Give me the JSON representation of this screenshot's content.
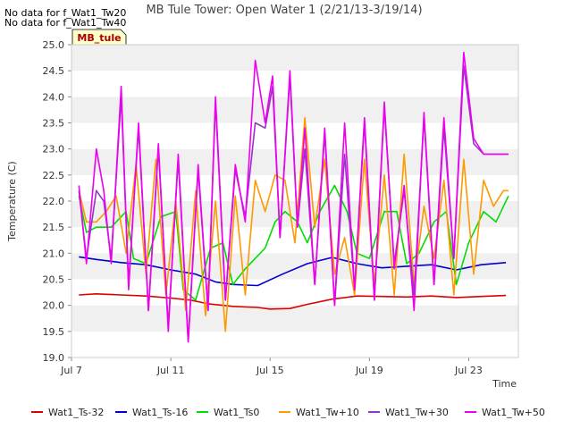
{
  "header": {
    "nodata_lines": [
      "No data for f_Wat1_Tw20",
      "No data for f_Wat1_Tw40"
    ],
    "site_badge": "MB_tule"
  },
  "chart_data": {
    "type": "line",
    "title": "MB Tule Tower: Open Water 1 (2/21/13-3/19/14)",
    "xlabel": "Time",
    "ylabel": "Temperature (C)",
    "ylim": [
      19.0,
      25.0
    ],
    "yticks": [
      "19.0",
      "19.5",
      "20.0",
      "20.5",
      "21.0",
      "21.5",
      "22.0",
      "22.5",
      "23.0",
      "23.5",
      "24.0",
      "24.5",
      "25.0"
    ],
    "xlim_days": [
      7,
      25
    ],
    "xticks": [
      {
        "label": "Jul 7",
        "day": 7
      },
      {
        "label": "Jul 11",
        "day": 11
      },
      {
        "label": "Jul 15",
        "day": 15
      },
      {
        "label": "Jul 19",
        "day": 19
      },
      {
        "label": "Jul 23",
        "day": 23
      }
    ],
    "grid": "horizontal bands",
    "legend_position": "bottom",
    "series": [
      {
        "name": "Wat1_Ts-32",
        "color": "#dd0000",
        "x": [
          7.3,
          8,
          9,
          10,
          11,
          11.8,
          12.5,
          13.5,
          14.5,
          15,
          15.8,
          16.5,
          17.5,
          18.5,
          19.5,
          20.5,
          21.5,
          22.5,
          23.5,
          24.5
        ],
        "y": [
          20.2,
          20.22,
          20.2,
          20.18,
          20.14,
          20.1,
          20.03,
          19.98,
          19.96,
          19.93,
          19.94,
          20.02,
          20.12,
          20.18,
          20.17,
          20.16,
          20.18,
          20.15,
          20.17,
          20.19
        ]
      },
      {
        "name": "Wat1_Ts-16",
        "color": "#0000cc",
        "x": [
          7.3,
          8,
          9,
          10,
          11,
          12,
          12.8,
          13.5,
          14.5,
          15.5,
          16.5,
          17.5,
          18.5,
          19.5,
          20.5,
          21.5,
          22.5,
          23.5,
          24.5
        ],
        "y": [
          20.93,
          20.88,
          20.82,
          20.78,
          20.68,
          20.6,
          20.45,
          20.4,
          20.38,
          20.6,
          20.8,
          20.92,
          20.8,
          20.72,
          20.75,
          20.78,
          20.68,
          20.78,
          20.82
        ]
      },
      {
        "name": "Wat1_Ts0",
        "color": "#00dd00",
        "x": [
          7.3,
          7.6,
          8,
          8.6,
          9.2,
          9.5,
          10,
          10.6,
          11.2,
          11.5,
          12,
          12.6,
          13.1,
          13.5,
          14,
          14.8,
          15.2,
          15.6,
          16.1,
          16.5,
          17,
          17.6,
          18.1,
          18.5,
          19,
          19.6,
          20.1,
          20.5,
          21,
          21.6,
          22.1,
          22.5,
          23.0,
          23.6,
          24.1,
          24.6
        ],
        "y": [
          22.1,
          21.4,
          21.5,
          21.5,
          21.8,
          20.9,
          20.8,
          21.7,
          21.8,
          20.3,
          20.1,
          21.1,
          21.2,
          20.4,
          20.7,
          21.1,
          21.6,
          21.8,
          21.6,
          21.2,
          21.8,
          22.3,
          21.8,
          21.0,
          20.9,
          21.8,
          21.8,
          20.8,
          21.0,
          21.6,
          21.8,
          20.4,
          21.2,
          21.8,
          21.6,
          22.1
        ]
      },
      {
        "name": "Wat1_Tw+10",
        "color": "#ff9900",
        "x": [
          7.3,
          7.6,
          8,
          8.4,
          8.8,
          9.2,
          9.6,
          10,
          10.4,
          10.8,
          11.2,
          11.6,
          12,
          12.4,
          12.8,
          13.2,
          13.6,
          14,
          14.4,
          14.8,
          15.2,
          15.6,
          16,
          16.4,
          16.8,
          17.2,
          17.6,
          18,
          18.4,
          18.8,
          19.2,
          19.6,
          20,
          20.4,
          20.8,
          21.2,
          21.6,
          22,
          22.4,
          22.8,
          23.2,
          23.6,
          24,
          24.4,
          24.6
        ],
        "y": [
          22.2,
          21.6,
          21.6,
          21.8,
          22.1,
          21.0,
          22.7,
          20.6,
          22.8,
          20.2,
          22.0,
          19.9,
          22.2,
          19.8,
          22.0,
          19.5,
          22.1,
          20.2,
          22.4,
          21.8,
          22.5,
          22.4,
          21.2,
          23.6,
          21.5,
          22.8,
          20.6,
          21.3,
          20.2,
          22.8,
          20.4,
          22.5,
          20.2,
          22.9,
          20.4,
          21.9,
          20.9,
          22.4,
          20.2,
          22.8,
          20.6,
          22.4,
          21.9,
          22.2,
          22.2
        ]
      },
      {
        "name": "Wat1_Tw+30",
        "color": "#9933cc",
        "x": [
          7.3,
          7.6,
          8,
          8.3,
          8.6,
          9,
          9.3,
          9.7,
          10.1,
          10.5,
          10.9,
          11.3,
          11.7,
          12.1,
          12.5,
          12.8,
          13.2,
          13.6,
          14,
          14.4,
          14.8,
          15.1,
          15.4,
          15.8,
          16.1,
          16.4,
          16.8,
          17.2,
          17.6,
          18,
          18.4,
          18.8,
          19.2,
          19.6,
          20,
          20.4,
          20.8,
          21.2,
          21.6,
          22,
          22.4,
          22.8,
          23.2,
          23.6,
          24,
          24.3,
          24.6
        ],
        "y": [
          22.2,
          20.9,
          22.2,
          22.0,
          20.9,
          24.0,
          20.4,
          23.4,
          19.9,
          23.0,
          19.6,
          22.8,
          19.3,
          22.6,
          19.9,
          23.9,
          20.1,
          22.6,
          21.7,
          23.5,
          23.4,
          24.2,
          21.3,
          24.4,
          21.5,
          23.0,
          20.4,
          23.3,
          20.0,
          22.9,
          20.3,
          23.5,
          20.1,
          23.8,
          20.8,
          22.2,
          20.2,
          23.6,
          20.4,
          23.4,
          20.9,
          24.6,
          23.1,
          22.9,
          22.9,
          22.9,
          22.9
        ]
      },
      {
        "name": "Wat1_Tw+50",
        "color": "#ee00ee",
        "x": [
          7.3,
          7.6,
          8,
          8.3,
          8.6,
          9,
          9.3,
          9.7,
          10.1,
          10.5,
          10.9,
          11.3,
          11.7,
          12.1,
          12.5,
          12.8,
          13.2,
          13.6,
          14,
          14.4,
          14.8,
          15.1,
          15.4,
          15.8,
          16.1,
          16.4,
          16.8,
          17.2,
          17.6,
          18,
          18.4,
          18.8,
          19.2,
          19.6,
          20,
          20.4,
          20.8,
          21.2,
          21.6,
          22,
          22.4,
          22.8,
          23.2,
          23.6,
          24,
          24.3,
          24.6
        ],
        "y": [
          22.3,
          20.8,
          23.0,
          22.2,
          20.8,
          24.2,
          20.3,
          23.5,
          19.9,
          23.1,
          19.5,
          22.9,
          19.3,
          22.7,
          19.9,
          24.0,
          20.1,
          22.7,
          21.6,
          24.7,
          23.5,
          24.4,
          21.3,
          24.5,
          21.5,
          23.4,
          20.4,
          23.4,
          20.0,
          23.5,
          20.3,
          23.6,
          20.1,
          23.9,
          20.7,
          22.3,
          19.9,
          23.7,
          20.4,
          23.6,
          20.9,
          24.85,
          23.2,
          22.9,
          22.9,
          22.9,
          22.9
        ]
      }
    ]
  }
}
